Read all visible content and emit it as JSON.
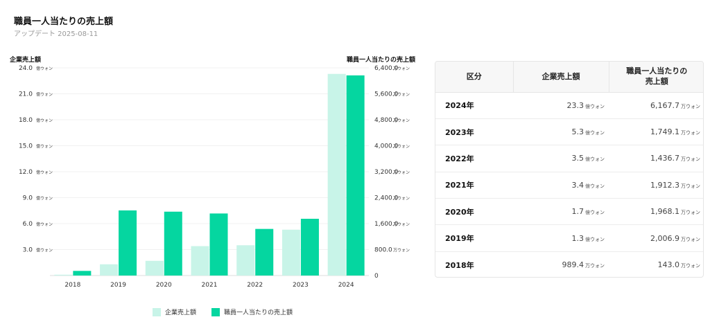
{
  "page": {
    "title": "職員一人当たりの売上額",
    "updated": "アップデート 2025-08-11"
  },
  "colors": {
    "company_sales": "#c8f4e8",
    "per_employee_sales": "#05d6a0"
  },
  "chart_data": {
    "type": "bar",
    "categories": [
      "2018",
      "2019",
      "2020",
      "2021",
      "2022",
      "2023",
      "2024"
    ],
    "series": [
      {
        "name": "企業売上額",
        "axis": "left",
        "unit": "億ウォン",
        "values": [
          0.0989,
          1.3,
          1.7,
          3.4,
          3.5,
          5.3,
          23.3
        ]
      },
      {
        "name": "職員一人当たりの売上額",
        "axis": "right",
        "unit": "万ウォン",
        "values": [
          143.0,
          2006.9,
          1968.1,
          1912.3,
          1436.7,
          1749.1,
          6167.7
        ]
      }
    ],
    "ylabel": "企業売上額",
    "y2label": "職員一人当たりの売上額",
    "ylim": [
      0,
      24
    ],
    "y2lim": [
      0,
      6400
    ],
    "left_ticks": [
      {
        "value": 3,
        "label": "3.0",
        "unit": "億ウォン"
      },
      {
        "value": 6,
        "label": "6.0",
        "unit": "億ウォン"
      },
      {
        "value": 9,
        "label": "9.0",
        "unit": "億ウォン"
      },
      {
        "value": 12,
        "label": "12.0",
        "unit": "億ウォン"
      },
      {
        "value": 15,
        "label": "15.0",
        "unit": "億ウォン"
      },
      {
        "value": 18,
        "label": "18.0",
        "unit": "億ウォン"
      },
      {
        "value": 21,
        "label": "21.0",
        "unit": "億ウォン"
      },
      {
        "value": 24,
        "label": "24.0",
        "unit": "億ウォン"
      }
    ],
    "right_ticks": [
      {
        "value": 0,
        "label": "0",
        "unit": ""
      },
      {
        "value": 800,
        "label": "800.0",
        "unit": "万ウォン"
      },
      {
        "value": 1600,
        "label": "1,600.0",
        "unit": "万ウォン"
      },
      {
        "value": 2400,
        "label": "2,400.0",
        "unit": "万ウォン"
      },
      {
        "value": 3200,
        "label": "3,200.0",
        "unit": "万ウォン"
      },
      {
        "value": 4000,
        "label": "4,000.0",
        "unit": "万ウォン"
      },
      {
        "value": 4800,
        "label": "4,800.0",
        "unit": "万ウォン"
      },
      {
        "value": 5600,
        "label": "5,600.0",
        "unit": "万ウォン"
      },
      {
        "value": 6400,
        "label": "6,400.0",
        "unit": "万ウォン"
      }
    ],
    "grid": true,
    "legend_position": "bottom"
  },
  "table": {
    "headers": [
      "区分",
      "企業売上額",
      "職員一人当たりの\n売上額"
    ],
    "rows": [
      {
        "year": "2024年",
        "sales": "23.3",
        "sales_unit": "億ウォン",
        "per": "6,167.7",
        "per_unit": "万ウォン"
      },
      {
        "year": "2023年",
        "sales": "5.3",
        "sales_unit": "億ウォン",
        "per": "1,749.1",
        "per_unit": "万ウォン"
      },
      {
        "year": "2022年",
        "sales": "3.5",
        "sales_unit": "億ウォン",
        "per": "1,436.7",
        "per_unit": "万ウォン"
      },
      {
        "year": "2021年",
        "sales": "3.4",
        "sales_unit": "億ウォン",
        "per": "1,912.3",
        "per_unit": "万ウォン"
      },
      {
        "year": "2020年",
        "sales": "1.7",
        "sales_unit": "億ウォン",
        "per": "1,968.1",
        "per_unit": "万ウォン"
      },
      {
        "year": "2019年",
        "sales": "1.3",
        "sales_unit": "億ウォン",
        "per": "2,006.9",
        "per_unit": "万ウォン"
      },
      {
        "year": "2018年",
        "sales": "989.4",
        "sales_unit": "万ウォン",
        "per": "143.0",
        "per_unit": "万ウォン"
      }
    ]
  }
}
